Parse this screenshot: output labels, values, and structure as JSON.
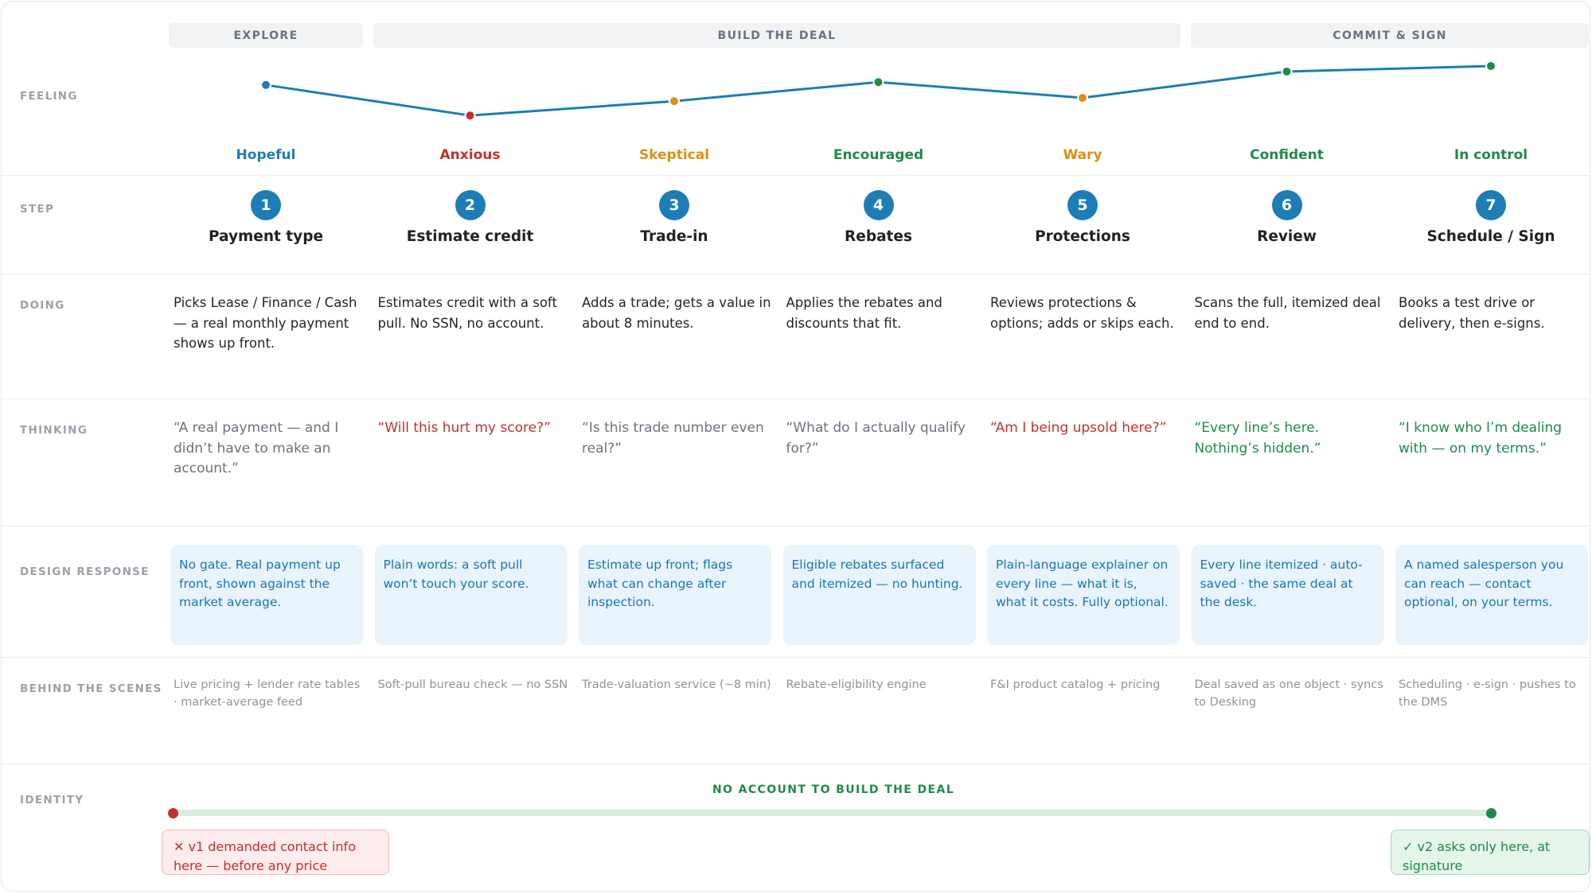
{
  "phases": {
    "explore": "EXPLORE",
    "build": "BUILD THE DEAL",
    "commit": "COMMIT & SIGN"
  },
  "rows": {
    "feeling": "FEELING",
    "step": "STEP",
    "doing": "DOING",
    "thinking": "THINKING",
    "design": "DESIGN RESPONSE",
    "behind": "BEHIND THE SCENES",
    "identity": "IDENTITY"
  },
  "colors": {
    "blue": "#1d7db4",
    "red": "#c62f2f",
    "orange": "#d99114",
    "green": "#1e8a4c",
    "gray": "#6b7280"
  },
  "feeling_levels": [
    0.72,
    0.08,
    0.38,
    0.78,
    0.45,
    1.0,
    1.0
  ],
  "feelings": [
    {
      "label": "Hopeful",
      "color": "#1d7db4"
    },
    {
      "label": "Anxious",
      "color": "#c62f2f"
    },
    {
      "label": "Skeptical",
      "color": "#d99114"
    },
    {
      "label": "Encouraged",
      "color": "#1e8a4c"
    },
    {
      "label": "Wary",
      "color": "#d99114"
    },
    {
      "label": "Confident",
      "color": "#1e8a4c"
    },
    {
      "label": "In control",
      "color": "#1e8a4c"
    }
  ],
  "steps": [
    {
      "num": "1",
      "title": "Payment type"
    },
    {
      "num": "2",
      "title": "Estimate credit"
    },
    {
      "num": "3",
      "title": "Trade-in"
    },
    {
      "num": "4",
      "title": "Rebates"
    },
    {
      "num": "5",
      "title": "Protections"
    },
    {
      "num": "6",
      "title": "Review"
    },
    {
      "num": "7",
      "title": "Schedule / Sign"
    }
  ],
  "doing": [
    "Picks Lease / Finance / Cash — a real monthly payment shows up front.",
    "Estimates credit with a soft pull. No SSN, no account.",
    "Adds a trade; gets a value in about 8 minutes.",
    "Applies the rebates and discounts that fit.",
    "Reviews protections & options; adds or skips each.",
    "Scans the full, itemized deal end to end.",
    "Books a test drive or delivery, then e-signs."
  ],
  "thinking": [
    {
      "text": "“A real payment — and I didn’t have to make an account.”",
      "color": "#6b7280"
    },
    {
      "text": "“Will this hurt my score?”",
      "color": "#c62f2f"
    },
    {
      "text": "“Is this trade number even real?”",
      "color": "#6b7280"
    },
    {
      "text": "“What do I actually qualify for?”",
      "color": "#6b7280"
    },
    {
      "text": "“Am I being upsold here?”",
      "color": "#c62f2f"
    },
    {
      "text": "“Every line’s here. Nothing’s hidden.”",
      "color": "#1e8a4c"
    },
    {
      "text": "“I know who I’m dealing with — on my terms.”",
      "color": "#1e8a4c"
    }
  ],
  "design": [
    "No gate. Real payment up front, shown against the market average.",
    "Plain words: a soft pull won’t touch your score.",
    "Estimate up front; flags what can change after inspection.",
    "Eligible rebates surfaced and itemized — no hunting.",
    "Plain-language explainer on every line — what it is, what it costs. Fully optional.",
    "Every line itemized · auto-saved · the same deal at the desk.",
    "A named salesperson you can reach — contact optional, on your terms."
  ],
  "behind": [
    "Live pricing + lender rate tables · market-average feed",
    "Soft-pull bureau check — no SSN",
    "Trade-valuation service (~8 min)",
    "Rebate-eligibility engine",
    "F&I product catalog + pricing",
    "Deal saved as one object · syncs to Desking",
    "Scheduling · e-sign · pushes to the DMS"
  ],
  "identity": {
    "title": "NO ACCOUNT TO BUILD THE DEAL",
    "bad_icon": "✕",
    "bad_note": "v1 demanded contact info here — before any price",
    "good_icon": "✓",
    "good_note": "v2 asks only here, at signature"
  }
}
